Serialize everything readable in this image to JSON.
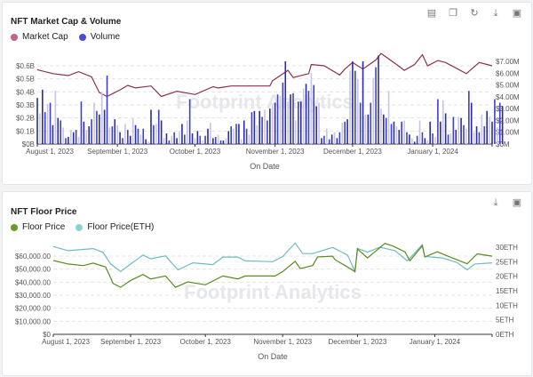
{
  "chart_data": [
    {
      "type": "bar+line",
      "title": "NFT Market Cap & Volume",
      "xlabel": "On Date",
      "x_unit": "days since August 1, 2023",
      "x_ticks": [
        {
          "day": 0,
          "label": "August 1, 2023"
        },
        {
          "day": 31,
          "label": "September 1, 2023"
        },
        {
          "day": 61,
          "label": "October 1, 2023"
        },
        {
          "day": 92,
          "label": "November 1, 2023"
        },
        {
          "day": 122,
          "label": "December 1, 2023"
        },
        {
          "day": 153,
          "label": "January 1, 2024"
        }
      ],
      "xlim": [
        0,
        176
      ],
      "y_left": {
        "label": "Market Cap",
        "ylim": [
          0,
          0.7
        ],
        "ticks": [
          "$0B",
          "$0.1B",
          "$0.2B",
          "$0.3B",
          "$0.4B",
          "$0.5B",
          "$0.6B"
        ],
        "tick_values": [
          0,
          0.1,
          0.2,
          0.3,
          0.4,
          0.5,
          0.6
        ]
      },
      "y_right": {
        "label": "Volume",
        "ylim": [
          0,
          7.6
        ],
        "ticks": [
          "$0M",
          "$1.00M",
          "$2.00M",
          "$3.00M",
          "$4.00M",
          "$5.00M",
          "$6.00M",
          "$7.00M"
        ],
        "tick_values": [
          0,
          1,
          2,
          3,
          4,
          5,
          6,
          7
        ]
      },
      "legend": [
        {
          "name": "Market Cap",
          "color": "#c0658a"
        },
        {
          "name": "Volume",
          "color": "#4b4bd6"
        }
      ],
      "legend_position": "top-left",
      "series": [
        {
          "name": "Market Cap",
          "type": "line",
          "axis": "left",
          "color": "#8b2f4e",
          "points": [
            [
              0,
              0.57
            ],
            [
              6,
              0.54
            ],
            [
              12,
              0.525
            ],
            [
              16,
              0.555
            ],
            [
              21,
              0.515
            ],
            [
              24,
              0.395
            ],
            [
              27,
              0.365
            ],
            [
              32,
              0.415
            ],
            [
              35,
              0.45
            ],
            [
              38,
              0.43
            ],
            [
              44,
              0.445
            ],
            [
              48,
              0.365
            ],
            [
              54,
              0.405
            ],
            [
              61,
              0.38
            ],
            [
              68,
              0.44
            ],
            [
              70,
              0.43
            ],
            [
              75,
              0.445
            ],
            [
              90,
              0.445
            ],
            [
              91,
              0.485
            ],
            [
              97,
              0.565
            ],
            [
              99,
              0.51
            ],
            [
              105,
              0.54
            ],
            [
              106,
              0.61
            ],
            [
              111,
              0.6
            ],
            [
              117,
              0.53
            ],
            [
              119,
              0.575
            ],
            [
              122,
              0.625
            ],
            [
              126,
              0.575
            ],
            [
              131,
              0.645
            ],
            [
              133,
              0.695
            ],
            [
              139,
              0.61
            ],
            [
              142,
              0.565
            ],
            [
              146,
              0.61
            ],
            [
              149,
              0.685
            ],
            [
              151,
              0.6
            ],
            [
              155,
              0.64
            ],
            [
              158,
              0.625
            ],
            [
              166,
              0.54
            ],
            [
              171,
              0.625
            ],
            [
              176,
              0.6
            ]
          ]
        },
        {
          "name": "Volume",
          "type": "bar",
          "axis": "right",
          "color": "#2b2ba8",
          "light_color": "#c5c5ec",
          "values": [
            3.9,
            2.6,
            4.6,
            2.7,
            3.4,
            3.5,
            1.6,
            4.5,
            2.2,
            2.0,
            1.4,
            0.5,
            0.6,
            1.2,
            1.0,
            1.2,
            0.6,
            3.6,
            1.9,
            1.2,
            1.5,
            2.1,
            3.5,
            2.8,
            2.5,
            4.4,
            2.9,
            5.8,
            1.4,
            1.5,
            2.1,
            1.6,
            1.0,
            0.5,
            1.7,
            1.2,
            0.7,
            2.2,
            1.6,
            1.3,
            0.8,
            1.3,
            0.4,
            0.2,
            2.9,
            1.6,
            1.7,
            2.9,
            2.0,
            0.5,
            0.9,
            0.3,
            0.7,
            1.0,
            0.5,
            1.1,
            1.7,
            0.8,
            2.0,
            3.8,
            0.9,
            0.5,
            1.1,
            0.7,
            0.3,
            0.7,
            1.3,
            1.8,
            0.5,
            0.6,
            0.8,
            0.3,
            0.3,
            0.5,
            1.1,
            1.5,
            1.3,
            1.7,
            1.7,
            0.4,
            2.0,
            1.3,
            0.8,
            2.7,
            2.8,
            1.6,
            2.8,
            2.3,
            2.9,
            2.0,
            3.0,
            3.3,
            3.5,
            4.2,
            4.1,
            5.2,
            7.0,
            3.6,
            4.2,
            4.3,
            2.0,
            3.6,
            3.6,
            4.7,
            5.1,
            4.5,
            6.0,
            5.0,
            3.2,
            3.5,
            0.5,
            0.7,
            1.3,
            0.4,
            0.8,
            1.0,
            0.5,
            1.0,
            1.8,
            1.9,
            2.1,
            6.2,
            7.0,
            6.2,
            5.5,
            3.5,
            7.0,
            2.5,
            2.5,
            3.5,
            5.6,
            6.5,
            7.5,
            3.0,
            2.5,
            2.2,
            4.5,
            1.7,
            1.9,
            1.5,
            1.2,
            1.9,
            2.0,
            1.0,
            0.8,
            0.5,
            0.2,
            0.7,
            2.0,
            1.0,
            0.5,
            0.3,
            1.9,
            0.9,
            0.6,
            3.8,
            1.9,
            3.7,
            2.6,
            0.8,
            0.9,
            2.3,
            1.2,
            2.3,
            2.2,
            1.6,
            1.3,
            4.5,
            3.5,
            1.0,
            1.5,
            1.0,
            2.5,
            1.5,
            2.8,
            2.3,
            1.9,
            3.8,
            1.4,
            3.5,
            3.2
          ]
        }
      ]
    },
    {
      "type": "line",
      "title": "NFT Floor Price",
      "xlabel": "On Date",
      "x_unit": "days since August 1, 2023",
      "x_ticks": [
        {
          "day": 0,
          "label": "August 1, 2023"
        },
        {
          "day": 31,
          "label": "September 1, 2023"
        },
        {
          "day": 61,
          "label": "October 1, 2023"
        },
        {
          "day": 92,
          "label": "November 1, 2023"
        },
        {
          "day": 122,
          "label": "December 1, 2023"
        },
        {
          "day": 153,
          "label": "January 1, 2024"
        }
      ],
      "xlim": [
        0,
        176
      ],
      "y_left": {
        "label": "Floor Price",
        "ylim": [
          0,
          70000
        ],
        "ticks": [
          "$0",
          "$10,000.00",
          "$20,000.00",
          "$30,000.00",
          "$40,000.00",
          "$50,000.00",
          "$60,000.00"
        ],
        "tick_values": [
          0,
          10000,
          20000,
          30000,
          40000,
          50000,
          60000
        ]
      },
      "y_right": {
        "label": "Floor Price(ETH)",
        "ylim": [
          0,
          32
        ],
        "ticks": [
          "0ETH",
          "5ETH",
          "10ETH",
          "15ETH",
          "20ETH",
          "25ETH",
          "30ETH"
        ],
        "tick_values": [
          0,
          5,
          10,
          15,
          20,
          25,
          30
        ]
      },
      "legend": [
        {
          "name": "Floor Price",
          "color": "#6a9a2e"
        },
        {
          "name": "Floor Price(ETH)",
          "color": "#8fd3d0"
        }
      ],
      "legend_position": "top-left",
      "series": [
        {
          "name": "Floor Price(ETH)",
          "type": "line",
          "axis": "right",
          "color": "#6fbcbc",
          "points": [
            [
              0,
              30.2
            ],
            [
              6,
              28.8
            ],
            [
              16,
              29.5
            ],
            [
              20,
              28.2
            ],
            [
              23,
              24.2
            ],
            [
              27,
              21.6
            ],
            [
              31,
              24.2
            ],
            [
              36,
              27.3
            ],
            [
              39,
              26
            ],
            [
              45,
              27
            ],
            [
              50,
              22.2
            ],
            [
              56,
              24.6
            ],
            [
              64,
              24
            ],
            [
              68,
              26.6
            ],
            [
              74,
              26.6
            ],
            [
              77,
              25.3
            ],
            [
              88,
              25
            ],
            [
              92,
              26.8
            ],
            [
              97,
              31.4
            ],
            [
              100,
              27.8
            ],
            [
              104,
              27.8
            ],
            [
              112,
              29.9
            ],
            [
              118,
              27.3
            ],
            [
              121,
              21.6
            ],
            [
              122,
              29.6
            ],
            [
              126,
              28.3
            ],
            [
              131,
              30
            ],
            [
              137,
              28.8
            ],
            [
              142,
              25.3
            ],
            [
              148,
              30.9
            ],
            [
              149,
              26.8
            ],
            [
              156,
              26.3
            ],
            [
              162,
              24.7
            ],
            [
              166,
              22.2
            ],
            [
              169,
              24.2
            ],
            [
              176,
              24.6
            ]
          ]
        },
        {
          "name": "Floor Price",
          "type": "line",
          "axis": "left",
          "color": "#5a8a22",
          "points": [
            [
              0,
              56600
            ],
            [
              6,
              53900
            ],
            [
              12,
              52700
            ],
            [
              16,
              54600
            ],
            [
              21,
              51600
            ],
            [
              24,
              39000
            ],
            [
              27,
              36100
            ],
            [
              31,
              41300
            ],
            [
              36,
              45900
            ],
            [
              39,
              42500
            ],
            [
              45,
              44700
            ],
            [
              49,
              36100
            ],
            [
              54,
              40200
            ],
            [
              61,
              38000
            ],
            [
              68,
              44700
            ],
            [
              74,
              42500
            ],
            [
              77,
              44700
            ],
            [
              89,
              44700
            ],
            [
              92,
              48100
            ],
            [
              97,
              56000
            ],
            [
              99,
              50400
            ],
            [
              104,
              52700
            ],
            [
              106,
              59400
            ],
            [
              112,
              59900
            ],
            [
              113,
              57200
            ],
            [
              117,
              52700
            ],
            [
              121,
              48100
            ],
            [
              122,
              65400
            ],
            [
              126,
              58600
            ],
            [
              133,
              69700
            ],
            [
              136,
              67900
            ],
            [
              141,
              63300
            ],
            [
              143,
              56400
            ],
            [
              148,
              67900
            ],
            [
              149,
              59400
            ],
            [
              154,
              63300
            ],
            [
              160,
              58600
            ],
            [
              166,
              54100
            ],
            [
              170,
              61700
            ],
            [
              176,
              59900
            ]
          ]
        }
      ]
    }
  ],
  "watermark": "Footprint Analytics",
  "toolbar1": [
    "table-icon",
    "copy-icon",
    "refresh-icon",
    "download-icon",
    "image-icon"
  ],
  "toolbar2": [
    "download-icon",
    "image-icon"
  ]
}
